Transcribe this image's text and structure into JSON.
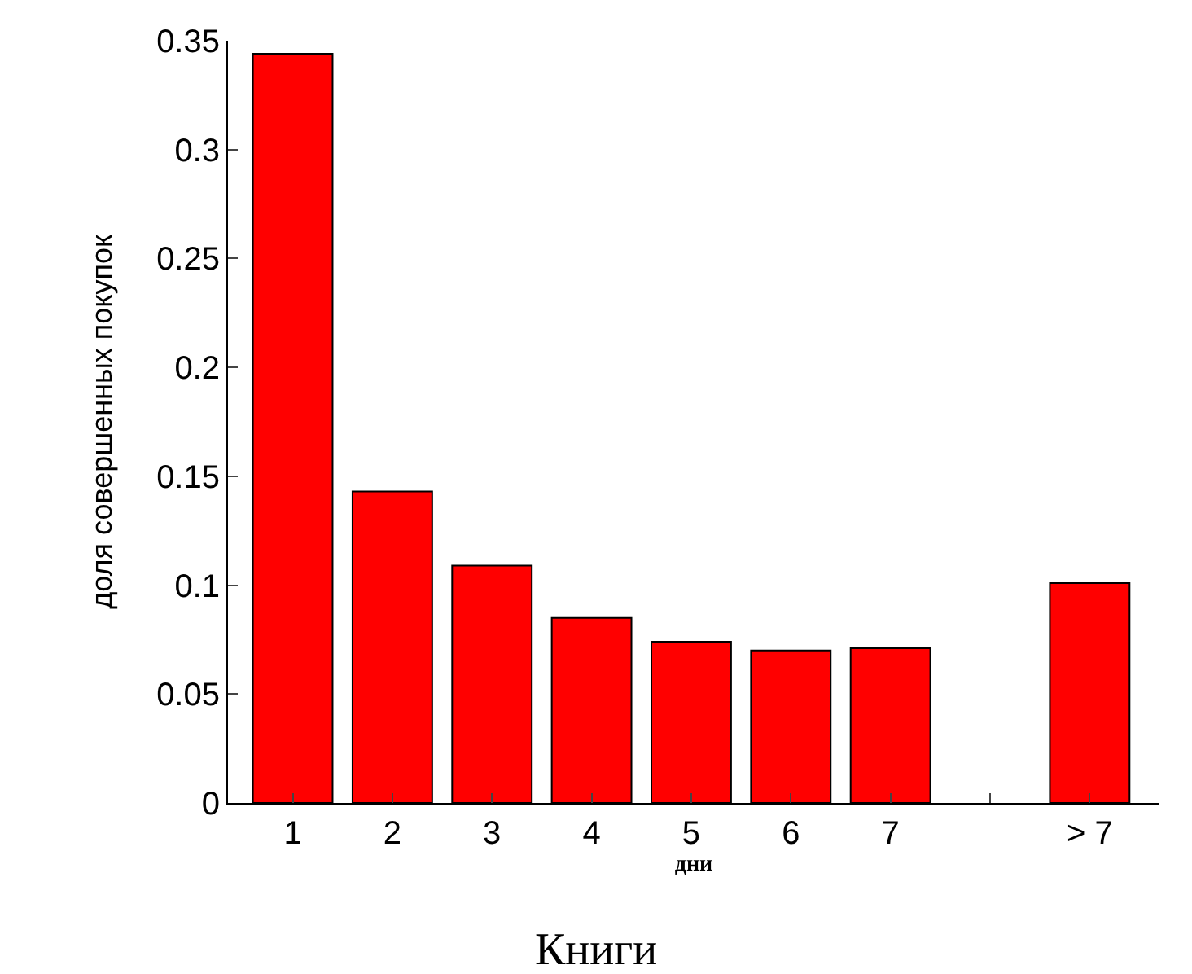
{
  "chart_data": {
    "type": "bar",
    "title": "Книги",
    "xlabel": "дни",
    "ylabel": "доля совершенных покупок",
    "categories": [
      "1",
      "2",
      "3",
      "4",
      "5",
      "6",
      "7",
      null,
      "> 7"
    ],
    "values": [
      0.344,
      0.143,
      0.109,
      0.085,
      0.074,
      0.07,
      0.071,
      null,
      0.101
    ],
    "color": "#ff0000",
    "ylim": [
      0,
      0.35
    ],
    "yticks": [
      0,
      0.05,
      0.1,
      0.15,
      0.2,
      0.25,
      0.3,
      0.35
    ]
  }
}
